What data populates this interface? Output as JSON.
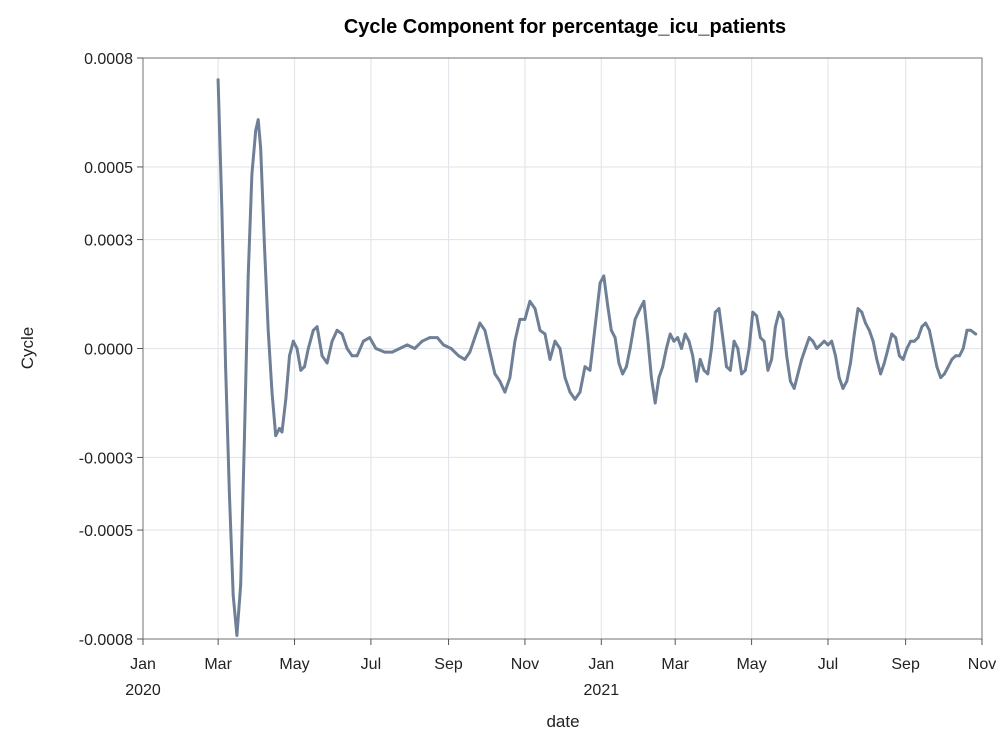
{
  "chart_data": {
    "type": "line",
    "title": "Cycle Component for percentage_icu_patients",
    "xlabel": "date",
    "ylabel": "Cycle",
    "xlim": [
      "2020-01-01",
      "2021-11-01"
    ],
    "ylim": [
      -0.0008,
      0.0008
    ],
    "grid": true,
    "legend": "none",
    "colors": {
      "series": "#6e7f96",
      "grid": "#e3e6ea",
      "frame": "#8c8c8c"
    },
    "y_ticks": [
      {
        "value": 0.0008,
        "label": "0.0008"
      },
      {
        "value": 0.0005,
        "label": "0.0005"
      },
      {
        "value": 0.0003,
        "label": "0.0003"
      },
      {
        "value": 0.0,
        "label": "0.0000"
      },
      {
        "value": -0.0003,
        "label": "-0.0003"
      },
      {
        "value": -0.0005,
        "label": "-0.0005"
      },
      {
        "value": -0.0008,
        "label": "-0.0008"
      }
    ],
    "x_ticks": [
      {
        "date": "2020-01-01",
        "label": "Jan",
        "year": "2020"
      },
      {
        "date": "2020-03-01",
        "label": "Mar",
        "year": ""
      },
      {
        "date": "2020-05-01",
        "label": "May",
        "year": ""
      },
      {
        "date": "2020-07-01",
        "label": "Jul",
        "year": ""
      },
      {
        "date": "2020-09-01",
        "label": "Sep",
        "year": ""
      },
      {
        "date": "2020-11-01",
        "label": "Nov",
        "year": ""
      },
      {
        "date": "2021-01-01",
        "label": "Jan",
        "year": "2021"
      },
      {
        "date": "2021-03-01",
        "label": "Mar",
        "year": ""
      },
      {
        "date": "2021-05-01",
        "label": "May",
        "year": ""
      },
      {
        "date": "2021-07-01",
        "label": "Jul",
        "year": ""
      },
      {
        "date": "2021-09-01",
        "label": "Sep",
        "year": ""
      },
      {
        "date": "2021-11-01",
        "label": "Nov",
        "year": ""
      }
    ],
    "series": [
      {
        "points": [
          [
            "2020-03-01",
            0.00074
          ],
          [
            "2020-03-04",
            0.00038
          ],
          [
            "2020-03-07",
            -5e-05
          ],
          [
            "2020-03-10",
            -0.0004
          ],
          [
            "2020-03-13",
            -0.00068
          ],
          [
            "2020-03-16",
            -0.00079
          ],
          [
            "2020-03-19",
            -0.00065
          ],
          [
            "2020-03-22",
            -0.00025
          ],
          [
            "2020-03-25",
            0.0002
          ],
          [
            "2020-03-28",
            0.00048
          ],
          [
            "2020-03-31",
            0.0006
          ],
          [
            "2020-04-02",
            0.00063
          ],
          [
            "2020-04-04",
            0.00055
          ],
          [
            "2020-04-07",
            0.00028
          ],
          [
            "2020-04-10",
            5e-05
          ],
          [
            "2020-04-13",
            -0.00012
          ],
          [
            "2020-04-16",
            -0.00024
          ],
          [
            "2020-04-19",
            -0.00022
          ],
          [
            "2020-04-21",
            -0.00023
          ],
          [
            "2020-04-24",
            -0.00014
          ],
          [
            "2020-04-27",
            -2e-05
          ],
          [
            "2020-04-30",
            2e-05
          ],
          [
            "2020-05-03",
            0.0
          ],
          [
            "2020-05-06",
            -6e-05
          ],
          [
            "2020-05-09",
            -5e-05
          ],
          [
            "2020-05-12",
            0.0
          ],
          [
            "2020-05-16",
            5e-05
          ],
          [
            "2020-05-19",
            6e-05
          ],
          [
            "2020-05-23",
            -2e-05
          ],
          [
            "2020-05-27",
            -4e-05
          ],
          [
            "2020-05-31",
            2e-05
          ],
          [
            "2020-06-04",
            5e-05
          ],
          [
            "2020-06-08",
            4e-05
          ],
          [
            "2020-06-12",
            0.0
          ],
          [
            "2020-06-16",
            -2e-05
          ],
          [
            "2020-06-20",
            -2e-05
          ],
          [
            "2020-06-25",
            2e-05
          ],
          [
            "2020-06-30",
            3e-05
          ],
          [
            "2020-07-05",
            0.0
          ],
          [
            "2020-07-12",
            -1e-05
          ],
          [
            "2020-07-18",
            -1e-05
          ],
          [
            "2020-07-24",
            0.0
          ],
          [
            "2020-07-30",
            1e-05
          ],
          [
            "2020-08-05",
            0.0
          ],
          [
            "2020-08-11",
            2e-05
          ],
          [
            "2020-08-17",
            3e-05
          ],
          [
            "2020-08-23",
            3e-05
          ],
          [
            "2020-08-28",
            1e-05
          ],
          [
            "2020-09-03",
            0.0
          ],
          [
            "2020-09-09",
            -2e-05
          ],
          [
            "2020-09-14",
            -3e-05
          ],
          [
            "2020-09-18",
            -1e-05
          ],
          [
            "2020-09-22",
            3e-05
          ],
          [
            "2020-09-26",
            7e-05
          ],
          [
            "2020-09-30",
            5e-05
          ],
          [
            "2020-10-04",
            -1e-05
          ],
          [
            "2020-10-08",
            -7e-05
          ],
          [
            "2020-10-12",
            -9e-05
          ],
          [
            "2020-10-16",
            -0.00012
          ],
          [
            "2020-10-20",
            -8e-05
          ],
          [
            "2020-10-24",
            2e-05
          ],
          [
            "2020-10-28",
            8e-05
          ],
          [
            "2020-11-01",
            8e-05
          ],
          [
            "2020-11-05",
            0.00013
          ],
          [
            "2020-11-09",
            0.00011
          ],
          [
            "2020-11-13",
            5e-05
          ],
          [
            "2020-11-17",
            4e-05
          ],
          [
            "2020-11-21",
            -3e-05
          ],
          [
            "2020-11-25",
            2e-05
          ],
          [
            "2020-11-29",
            0.0
          ],
          [
            "2020-12-03",
            -8e-05
          ],
          [
            "2020-12-07",
            -0.00012
          ],
          [
            "2020-12-11",
            -0.00014
          ],
          [
            "2020-12-15",
            -0.00012
          ],
          [
            "2020-12-19",
            -5e-05
          ],
          [
            "2020-12-23",
            -6e-05
          ],
          [
            "2020-12-27",
            6e-05
          ],
          [
            "2020-12-31",
            0.00018
          ],
          [
            "2021-01-03",
            0.0002
          ],
          [
            "2021-01-06",
            0.00012
          ],
          [
            "2021-01-09",
            5e-05
          ],
          [
            "2021-01-12",
            3e-05
          ],
          [
            "2021-01-15",
            -4e-05
          ],
          [
            "2021-01-18",
            -7e-05
          ],
          [
            "2021-01-21",
            -5e-05
          ],
          [
            "2021-01-24",
            0.0
          ],
          [
            "2021-01-28",
            8e-05
          ],
          [
            "2021-02-01",
            0.00011
          ],
          [
            "2021-02-04",
            0.00013
          ],
          [
            "2021-02-07",
            3e-05
          ],
          [
            "2021-02-10",
            -8e-05
          ],
          [
            "2021-02-13",
            -0.00015
          ],
          [
            "2021-02-16",
            -8e-05
          ],
          [
            "2021-02-19",
            -5e-05
          ],
          [
            "2021-02-22",
            0.0
          ],
          [
            "2021-02-25",
            4e-05
          ],
          [
            "2021-02-28",
            2e-05
          ],
          [
            "2021-03-03",
            3e-05
          ],
          [
            "2021-03-06",
            0.0
          ],
          [
            "2021-03-09",
            4e-05
          ],
          [
            "2021-03-12",
            2e-05
          ],
          [
            "2021-03-15",
            -2e-05
          ],
          [
            "2021-03-18",
            -9e-05
          ],
          [
            "2021-03-21",
            -3e-05
          ],
          [
            "2021-03-24",
            -6e-05
          ],
          [
            "2021-03-27",
            -7e-05
          ],
          [
            "2021-03-30",
            0.0
          ],
          [
            "2021-04-02",
            0.0001
          ],
          [
            "2021-04-05",
            0.00011
          ],
          [
            "2021-04-08",
            3e-05
          ],
          [
            "2021-04-11",
            -5e-05
          ],
          [
            "2021-04-14",
            -6e-05
          ],
          [
            "2021-04-17",
            2e-05
          ],
          [
            "2021-04-20",
            0.0
          ],
          [
            "2021-04-23",
            -7e-05
          ],
          [
            "2021-04-26",
            -6e-05
          ],
          [
            "2021-04-29",
            0.0
          ],
          [
            "2021-05-02",
            0.0001
          ],
          [
            "2021-05-05",
            9e-05
          ],
          [
            "2021-05-08",
            3e-05
          ],
          [
            "2021-05-11",
            2e-05
          ],
          [
            "2021-05-14",
            -6e-05
          ],
          [
            "2021-05-17",
            -3e-05
          ],
          [
            "2021-05-20",
            6e-05
          ],
          [
            "2021-05-23",
            0.0001
          ],
          [
            "2021-05-26",
            8e-05
          ],
          [
            "2021-05-29",
            -2e-05
          ],
          [
            "2021-06-01",
            -9e-05
          ],
          [
            "2021-06-04",
            -0.00011
          ],
          [
            "2021-06-07",
            -7e-05
          ],
          [
            "2021-06-10",
            -3e-05
          ],
          [
            "2021-06-13",
            0.0
          ],
          [
            "2021-06-16",
            3e-05
          ],
          [
            "2021-06-19",
            2e-05
          ],
          [
            "2021-06-22",
            0.0
          ],
          [
            "2021-06-25",
            1e-05
          ],
          [
            "2021-06-28",
            2e-05
          ],
          [
            "2021-07-01",
            1e-05
          ],
          [
            "2021-07-04",
            2e-05
          ],
          [
            "2021-07-07",
            -2e-05
          ],
          [
            "2021-07-10",
            -8e-05
          ],
          [
            "2021-07-13",
            -0.00011
          ],
          [
            "2021-07-16",
            -9e-05
          ],
          [
            "2021-07-19",
            -4e-05
          ],
          [
            "2021-07-22",
            4e-05
          ],
          [
            "2021-07-25",
            0.00011
          ],
          [
            "2021-07-28",
            0.0001
          ],
          [
            "2021-07-31",
            7e-05
          ],
          [
            "2021-08-03",
            5e-05
          ],
          [
            "2021-08-06",
            2e-05
          ],
          [
            "2021-08-09",
            -3e-05
          ],
          [
            "2021-08-12",
            -7e-05
          ],
          [
            "2021-08-15",
            -4e-05
          ],
          [
            "2021-08-18",
            0.0
          ],
          [
            "2021-08-21",
            4e-05
          ],
          [
            "2021-08-24",
            3e-05
          ],
          [
            "2021-08-27",
            -2e-05
          ],
          [
            "2021-08-30",
            -3e-05
          ],
          [
            "2021-09-02",
            0.0
          ],
          [
            "2021-09-05",
            2e-05
          ],
          [
            "2021-09-08",
            2e-05
          ],
          [
            "2021-09-11",
            3e-05
          ],
          [
            "2021-09-14",
            6e-05
          ],
          [
            "2021-09-17",
            7e-05
          ],
          [
            "2021-09-20",
            5e-05
          ],
          [
            "2021-09-23",
            0.0
          ],
          [
            "2021-09-26",
            -5e-05
          ],
          [
            "2021-09-29",
            -8e-05
          ],
          [
            "2021-10-02",
            -7e-05
          ],
          [
            "2021-10-05",
            -5e-05
          ],
          [
            "2021-10-08",
            -3e-05
          ],
          [
            "2021-10-11",
            -2e-05
          ],
          [
            "2021-10-14",
            -2e-05
          ],
          [
            "2021-10-17",
            0.0
          ],
          [
            "2021-10-20",
            5e-05
          ],
          [
            "2021-10-23",
            5e-05
          ],
          [
            "2021-10-27",
            4e-05
          ]
        ]
      }
    ]
  }
}
